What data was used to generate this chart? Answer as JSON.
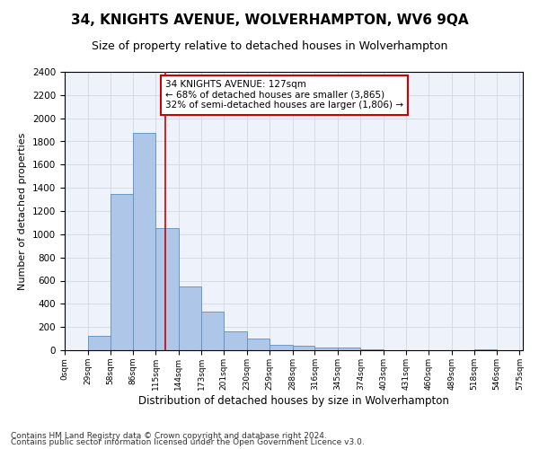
{
  "title": "34, KNIGHTS AVENUE, WOLVERHAMPTON, WV6 9QA",
  "subtitle": "Size of property relative to detached houses in Wolverhampton",
  "xlabel": "Distribution of detached houses by size in Wolverhampton",
  "ylabel": "Number of detached properties",
  "footer_line1": "Contains HM Land Registry data © Crown copyright and database right 2024.",
  "footer_line2": "Contains public sector information licensed under the Open Government Licence v3.0.",
  "bin_labels": [
    "0sqm",
    "29sqm",
    "58sqm",
    "86sqm",
    "115sqm",
    "144sqm",
    "173sqm",
    "201sqm",
    "230sqm",
    "259sqm",
    "288sqm",
    "316sqm",
    "345sqm",
    "374sqm",
    "403sqm",
    "431sqm",
    "460sqm",
    "489sqm",
    "518sqm",
    "546sqm",
    "575sqm"
  ],
  "bin_edges": [
    0,
    29,
    58,
    86,
    115,
    144,
    173,
    201,
    230,
    259,
    288,
    316,
    345,
    374,
    403,
    431,
    460,
    489,
    518,
    546,
    575
  ],
  "bar_values": [
    0,
    125,
    1350,
    1875,
    1050,
    550,
    335,
    165,
    100,
    50,
    35,
    20,
    20,
    10,
    0,
    0,
    0,
    0,
    5,
    0
  ],
  "bar_color": "#aec6e8",
  "bar_edge_color": "#5a8fc2",
  "grid_color": "#d0d8e8",
  "bg_color": "#eef2fa",
  "property_size": 127,
  "red_line_color": "#cc0000",
  "annotation_text": "34 KNIGHTS AVENUE: 127sqm\n← 68% of detached houses are smaller (3,865)\n32% of semi-detached houses are larger (1,806) →",
  "annotation_box_color": "#ffffff",
  "annotation_box_edge_color": "#cc0000",
  "ylim": [
    0,
    2400
  ],
  "yticks": [
    0,
    200,
    400,
    600,
    800,
    1000,
    1200,
    1400,
    1600,
    1800,
    2000,
    2200,
    2400
  ],
  "title_fontsize": 11,
  "subtitle_fontsize": 9,
  "ylabel_fontsize": 8,
  "xlabel_fontsize": 8.5,
  "footer_fontsize": 6.5,
  "annot_fontsize": 7.5
}
